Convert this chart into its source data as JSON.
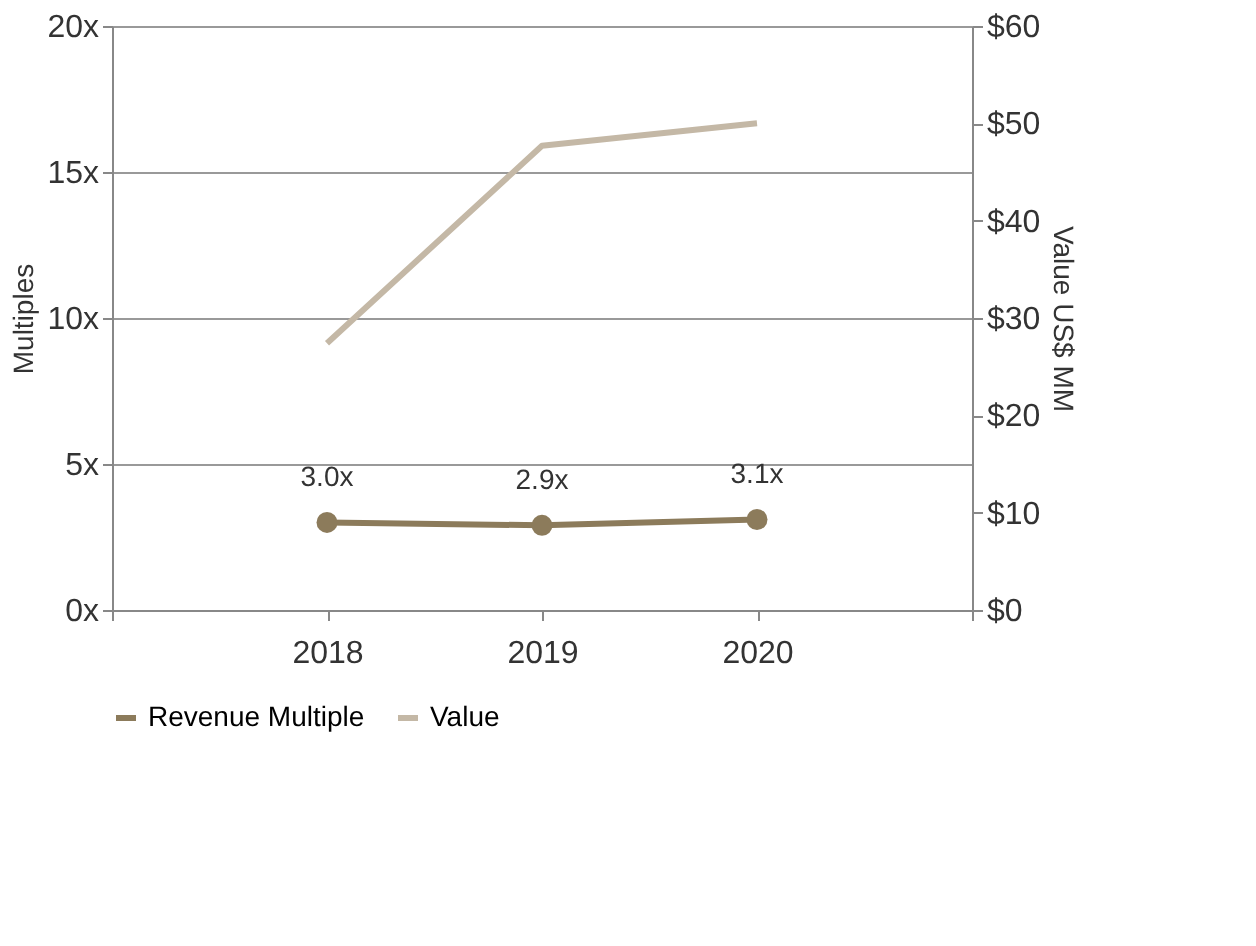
{
  "chart_data": {
    "type": "line",
    "x": [
      2018,
      2019,
      2020
    ],
    "xlim": [
      2017,
      2021
    ],
    "xticks": [
      {
        "value": 2017,
        "label": null
      },
      2018,
      2019,
      2020,
      {
        "value": 2021,
        "label": null
      }
    ],
    "ylabel": "Multiples",
    "y2label": "Value US$ MM",
    "ylim": [
      0,
      20
    ],
    "yticks": [
      {
        "value": 0,
        "label": "0x"
      },
      {
        "value": 5,
        "label": "5x"
      },
      {
        "value": 10,
        "label": "10x"
      },
      {
        "value": 15,
        "label": "15x"
      },
      {
        "value": 20,
        "label": "20x"
      }
    ],
    "y2lim": [
      0,
      60
    ],
    "y2ticks": [
      {
        "value": 0,
        "label": "$0"
      },
      {
        "value": 10,
        "label": "$10"
      },
      {
        "value": 20,
        "label": "$20"
      },
      {
        "value": 30,
        "label": "$30"
      },
      {
        "value": 40,
        "label": "$40"
      },
      {
        "value": 50,
        "label": "$50"
      },
      {
        "value": 60,
        "label": "$60"
      }
    ],
    "series": [
      {
        "name": "Revenue Multiple",
        "color": "#8c7b5b",
        "values": [
          3.0,
          2.9,
          3.1
        ],
        "marker": "circle",
        "value_labels": [
          "3.0x",
          "2.9x",
          "3.1x"
        ]
      },
      {
        "name": "Value",
        "color": "#c4b8a6",
        "values": [
          27.4,
          47.7,
          50
        ],
        "axis": "y2",
        "marker": "none"
      }
    ],
    "grid": "y",
    "legend": "bottom"
  }
}
